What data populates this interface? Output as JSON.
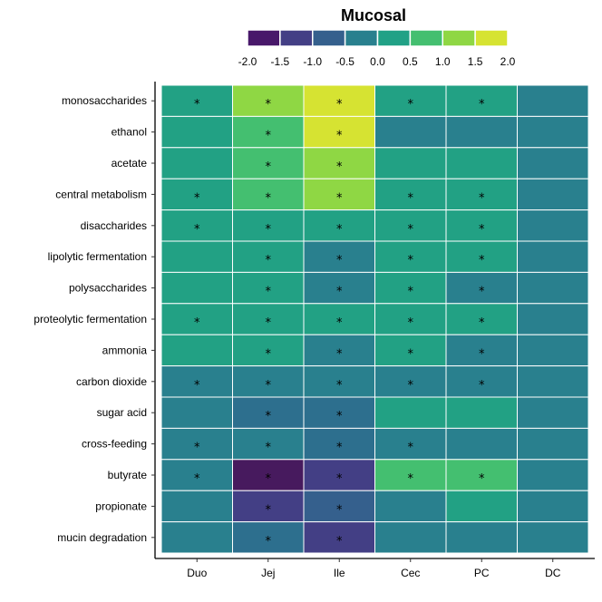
{
  "chart_data": {
    "type": "heatmap",
    "title": "Mucosal",
    "x_categories": [
      "Duo",
      "Jej",
      "Ile",
      "Cec",
      "PC",
      "DC"
    ],
    "y_categories": [
      "monosaccharides",
      "ethanol",
      "acetate",
      "central metabolism",
      "disaccharides",
      "lipolytic fermentation",
      "polysaccharides",
      "proteolytic fermentation",
      "ammonia",
      "carbon dioxide",
      "sugar acid",
      "cross-feeding",
      "butyrate",
      "propionate",
      "mucin degradation"
    ],
    "values": [
      [
        0.5,
        1.5,
        2.0,
        0.5,
        0.5,
        0.0
      ],
      [
        0.5,
        1.0,
        2.0,
        0.0,
        0.0,
        0.0
      ],
      [
        0.5,
        1.0,
        1.5,
        0.5,
        0.5,
        0.0
      ],
      [
        0.5,
        1.0,
        1.5,
        0.5,
        0.5,
        0.0
      ],
      [
        0.5,
        0.5,
        0.5,
        0.5,
        0.5,
        0.0
      ],
      [
        0.5,
        0.5,
        0.0,
        0.5,
        0.5,
        0.0
      ],
      [
        0.5,
        0.5,
        0.0,
        0.5,
        0.0,
        0.0
      ],
      [
        0.5,
        0.5,
        0.5,
        0.5,
        0.5,
        0.0
      ],
      [
        0.5,
        0.5,
        0.0,
        0.5,
        0.0,
        0.0
      ],
      [
        0.0,
        0.0,
        0.0,
        0.0,
        0.0,
        0.0
      ],
      [
        0.0,
        -0.5,
        -0.5,
        0.5,
        0.5,
        0.0
      ],
      [
        0.0,
        0.0,
        -0.5,
        0.0,
        0.0,
        0.0
      ],
      [
        0.0,
        -2.0,
        -1.5,
        1.0,
        1.0,
        0.0
      ],
      [
        0.0,
        -1.5,
        -1.0,
        0.0,
        0.5,
        0.0
      ],
      [
        0.0,
        -0.5,
        -1.5,
        0.0,
        0.0,
        0.0
      ]
    ],
    "significant": [
      [
        true,
        true,
        true,
        true,
        true,
        false
      ],
      [
        false,
        true,
        true,
        false,
        false,
        false
      ],
      [
        false,
        true,
        true,
        false,
        false,
        false
      ],
      [
        true,
        true,
        true,
        true,
        true,
        false
      ],
      [
        true,
        true,
        true,
        true,
        true,
        false
      ],
      [
        false,
        true,
        true,
        true,
        true,
        false
      ],
      [
        false,
        true,
        true,
        true,
        true,
        false
      ],
      [
        true,
        true,
        true,
        true,
        true,
        false
      ],
      [
        false,
        true,
        true,
        true,
        true,
        false
      ],
      [
        true,
        true,
        true,
        true,
        true,
        false
      ],
      [
        false,
        true,
        true,
        false,
        false,
        false
      ],
      [
        true,
        true,
        true,
        true,
        false,
        false
      ],
      [
        true,
        true,
        true,
        true,
        true,
        false
      ],
      [
        false,
        true,
        true,
        false,
        false,
        false
      ],
      [
        false,
        true,
        true,
        false,
        false,
        false
      ]
    ],
    "significance_marker": "*",
    "legend": {
      "position": "top",
      "breaks": [
        -2.0,
        -1.5,
        -1.0,
        -0.5,
        0.0,
        0.5,
        1.0,
        1.5,
        2.0
      ],
      "tick_labels": [
        "-2.0",
        "-1.5",
        "-1.0",
        "-0.5",
        "0.0",
        "0.5",
        "1.0",
        "1.5",
        "2.0"
      ]
    },
    "color_scale": {
      "-2.0": "#471a5e",
      "-1.5": "#433f85",
      "-1.0": "#35608d",
      "-0.5": "#2d6f8e",
      "0.0": "#29808e",
      "0.5": "#22a184",
      "1.0": "#44bf70",
      "1.5": "#8fd744",
      "2.0": "#d6e332"
    },
    "legend_colors": [
      "#48186a",
      "#433f85",
      "#35608d",
      "#29808e",
      "#21a186",
      "#44bf70",
      "#8fd744",
      "#d6e332"
    ],
    "grid": false
  }
}
